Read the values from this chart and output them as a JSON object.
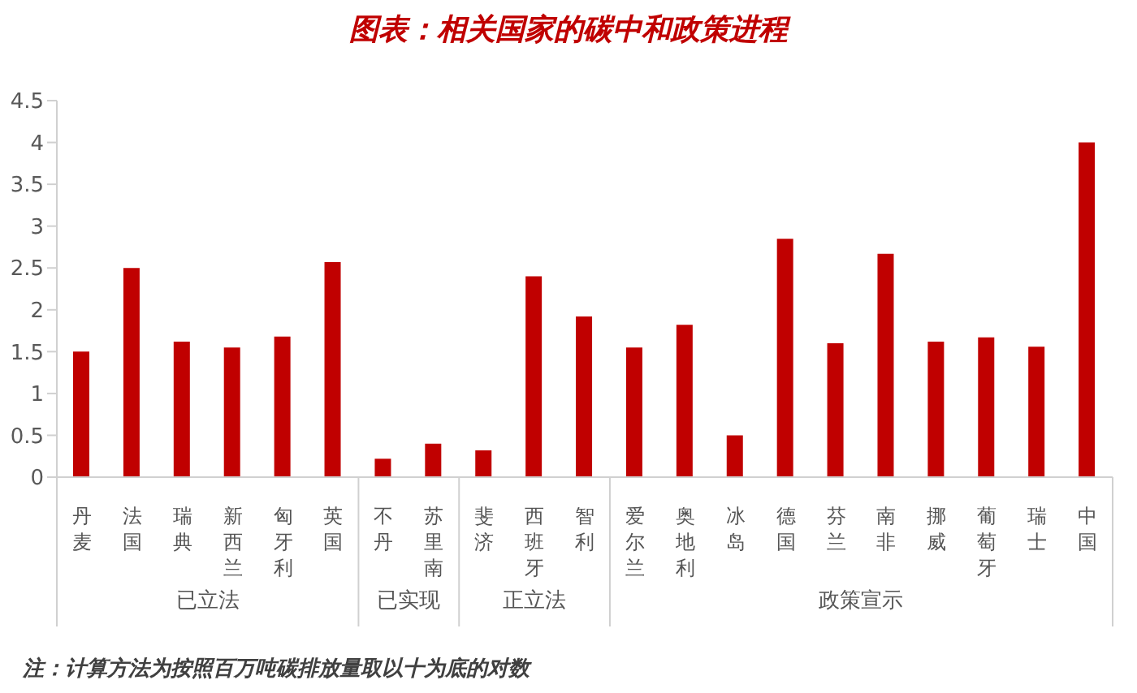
{
  "chart_data": {
    "type": "bar",
    "title": "图表：相关国家的碳中和政策进程",
    "categories": [
      "丹麦",
      "法国",
      "瑞典",
      "新西兰",
      "匈牙利",
      "英国",
      "不丹",
      "苏里南",
      "斐济",
      "西班牙",
      "智利",
      "爱尔兰",
      "奥地利",
      "冰岛",
      "德国",
      "芬兰",
      "南非",
      "挪威",
      "葡萄牙",
      "瑞士",
      "中国"
    ],
    "values": [
      1.5,
      2.5,
      1.62,
      1.55,
      1.68,
      2.57,
      0.22,
      0.4,
      0.32,
      2.4,
      1.92,
      1.55,
      1.82,
      0.5,
      2.85,
      1.6,
      2.67,
      1.62,
      1.67,
      1.56,
      4.0
    ],
    "color": "#c00000",
    "ylim": [
      0,
      4.5
    ],
    "yticks": [
      0,
      0.5,
      1,
      1.5,
      2,
      2.5,
      3,
      3.5,
      4,
      4.5
    ],
    "grid": false,
    "legend": false,
    "annotations": [
      "已立法",
      "已实现",
      "正立法",
      "政策宣示",
      "注：计算方法为按照百万吨碳排放量取以十为底的对数"
    ]
  }
}
